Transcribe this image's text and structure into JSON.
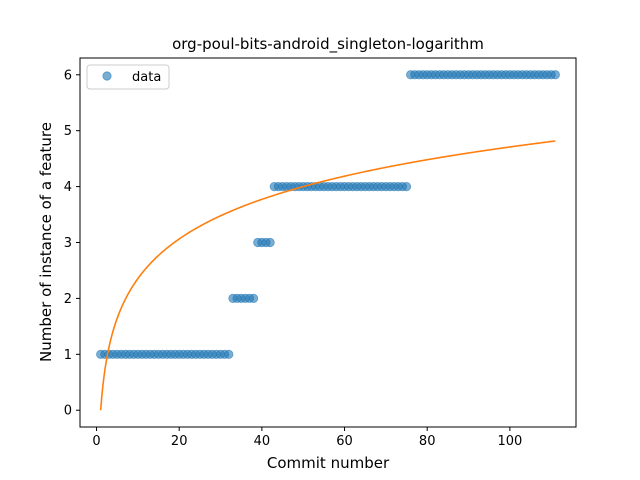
{
  "chart_data": {
    "type": "scatter",
    "title": "org-poul-bits-android_singleton-logarithm",
    "xlabel": "Commit number",
    "ylabel": "Number of instance of a feature",
    "xlim": [
      -4,
      116
    ],
    "ylim": [
      -0.3,
      6.3
    ],
    "xticks": [
      0,
      20,
      40,
      60,
      80,
      100
    ],
    "yticks": [
      0,
      1,
      2,
      3,
      4,
      5,
      6
    ],
    "legend": {
      "position": "top-left",
      "entries": [
        "data"
      ]
    },
    "grid": false,
    "colors": {
      "data": "#1f77b4",
      "fit": "#ff7f0e"
    },
    "series": [
      {
        "name": "data",
        "kind": "scatter",
        "segments": [
          {
            "x_from": 1,
            "x_to": 32,
            "y": 1
          },
          {
            "x_from": 33,
            "x_to": 38,
            "y": 2
          },
          {
            "x_from": 39,
            "x_to": 42,
            "y": 3
          },
          {
            "x_from": 43,
            "x_to": 75,
            "y": 4
          },
          {
            "x_from": 76,
            "x_to": 111,
            "y": 6
          }
        ]
      },
      {
        "kind": "line",
        "function": "log",
        "a": 1.0225,
        "x_range": [
          1,
          111
        ]
      }
    ]
  }
}
